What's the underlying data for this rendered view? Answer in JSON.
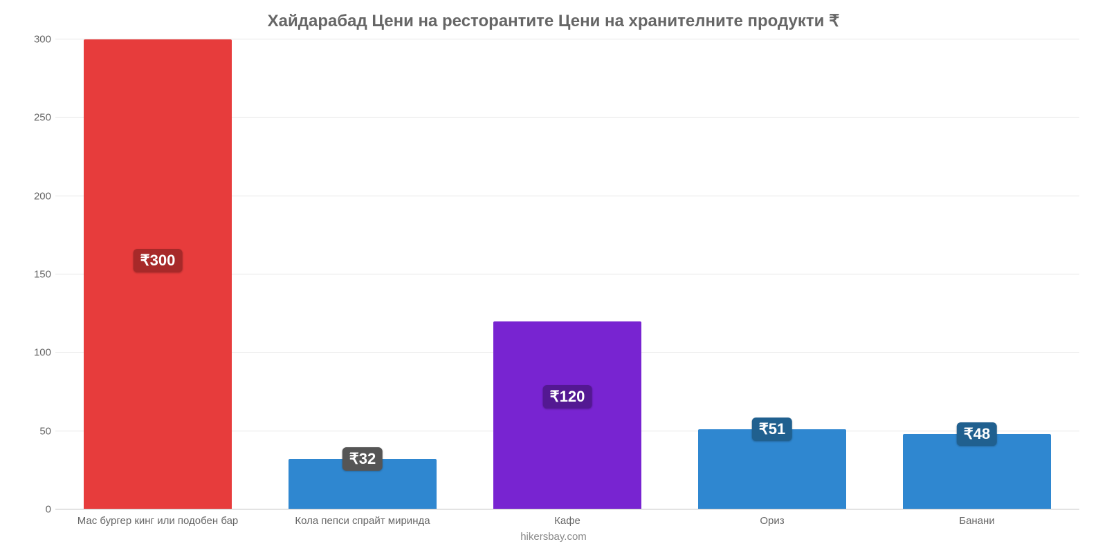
{
  "chart": {
    "type": "bar",
    "title": "Хайдарабад Цени на ресторантите Цени на хранителните продукти ₹",
    "title_color": "#666666",
    "title_fontsize": 24,
    "credit": "hikersbay.com",
    "credit_color": "#888888",
    "background_color": "#ffffff",
    "grid_color": "#e6e6e6",
    "axis_color": "#bdbdbd",
    "label_color": "#666666",
    "label_fontsize": 15,
    "badge_fontsize": 22,
    "ylim": [
      0,
      300
    ],
    "yticks": [
      0,
      50,
      100,
      150,
      200,
      250,
      300
    ],
    "bar_width": 0.72,
    "categories": [
      "Мас бургер кинг или подобен бар",
      "Кола пепси спрайт миринда",
      "Кафе",
      "Ориз",
      "Банани"
    ],
    "values": [
      300,
      32,
      120,
      51,
      48
    ],
    "value_prefix": "₹",
    "bar_colors": [
      "#e73c3c",
      "#2f87d0",
      "#7824d1",
      "#2f87d0",
      "#2f87d0"
    ],
    "badge_colors": [
      "#a72929",
      "#555555",
      "#531892",
      "#20608f",
      "#20608f"
    ],
    "badge_offsets_pct": [
      47,
      0,
      40,
      0,
      0
    ]
  }
}
